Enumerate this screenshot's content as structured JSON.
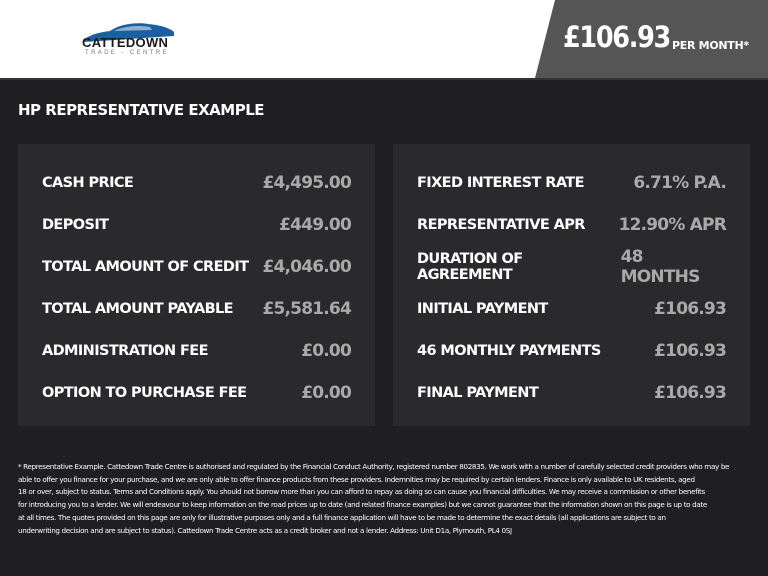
{
  "header": {
    "logo_name": "CATTEDOWN",
    "logo_sub": "TRADE - CENTRE",
    "price": "£106.93",
    "per_month": "PER MONTH*"
  },
  "title": "HP REPRESENTATIVE EXAMPLE",
  "left_panel": [
    {
      "label": "CASH PRICE",
      "value": "£4,495.00"
    },
    {
      "label": "DEPOSIT",
      "value": "£449.00"
    },
    {
      "label": "TOTAL AMOUNT OF CREDIT",
      "value": "£4,046.00"
    },
    {
      "label": "TOTAL AMOUNT PAYABLE",
      "value": "£5,581.64"
    },
    {
      "label": "ADMINISTRATION FEE",
      "value": "£0.00"
    },
    {
      "label": "OPTION TO PURCHASE FEE",
      "value": "£0.00"
    }
  ],
  "right_panel": [
    {
      "label": "FIXED INTEREST RATE",
      "value": "6.71% P.A."
    },
    {
      "label": "REPRESENTATIVE APR",
      "value": "12.90% APR"
    },
    {
      "label": "DURATION OF AGREEMENT",
      "value": "48 MONTHS"
    },
    {
      "label": "INITIAL PAYMENT",
      "value": "£106.93"
    },
    {
      "label": "46 MONTHLY PAYMENTS",
      "value": "£106.93"
    },
    {
      "label": "FINAL PAYMENT",
      "value": "£106.93"
    }
  ],
  "footer_lines": [
    "* Representative Example. Cattedown Trade Centre is authorised and regulated by the Financial Conduct Authority, registered number 802835. We work with a number of carefully selected credit providers who may be",
    "able to offer you finance for your purchase, and we are only able to offer finance products from these providers. Indemnities may be required by certain lenders. Finance is only available to UK residents, aged",
    "18 or over, subject to status. Terms and Conditions apply. You should not borrow more than you can afford to repay as doing so can cause you financial difficulties. We may receive a commission or other benefits",
    "for introducing you to a lender. We will endeavour to keep information on the road prices up to date (and related finance examples) but we cannot guarantee that the information shown on this page is up to date",
    "at all times. The quotes provided on this page are only for illustrative purposes only and a full finance application will have to be made to determine the exact details (all applications are subject to an",
    "underwriting decision and are subject to status). Cattedown Trade Centre acts as a credit broker and not a lender. Address: Unit D1a, Plymouth, PL4 0SJ"
  ],
  "colors": {
    "background": "#1f1f21",
    "panel": "#2a2a2c",
    "price_block": "#555555",
    "logo_blue": "#1c5fa0",
    "value_gray": "#a9a9a9"
  }
}
